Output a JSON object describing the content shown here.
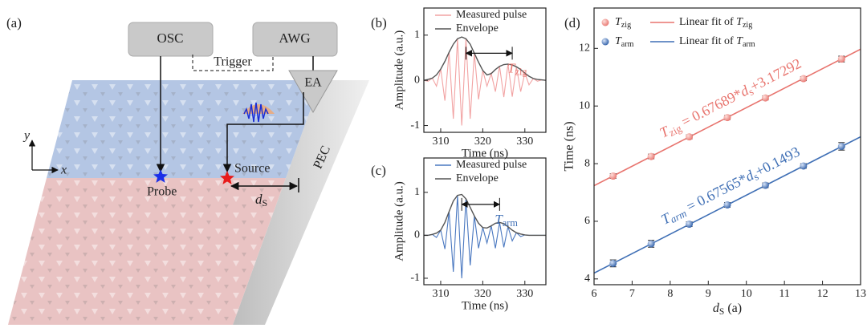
{
  "diagram": {
    "panel_label": "(a)",
    "osc": "OSC",
    "awg": "AWG",
    "trigger": "Trigger",
    "ea": "EA",
    "source": "Source",
    "probe": "Probe",
    "pec": "PEC",
    "axis_y": "y",
    "axis_x": "x",
    "distance": "d",
    "distance_sub": "S"
  },
  "chart_data": [
    {
      "type": "line",
      "panel_label": "(b)",
      "x_label": "Time (ns)",
      "y_label": "Amplitude (a.u.)",
      "x": [
        306,
        307,
        308,
        309,
        310,
        311,
        312,
        313,
        314,
        315,
        316,
        317,
        318,
        319,
        320,
        321,
        322,
        323,
        324,
        325,
        326,
        327,
        328,
        329,
        330,
        331,
        332,
        333,
        334,
        335
      ],
      "series": [
        {
          "name": "Measured pulse",
          "color": "#f2a3a3",
          "values": [
            0,
            -0.02,
            0.05,
            -0.13,
            0.25,
            -0.45,
            0.62,
            -0.85,
            0.92,
            -1.0,
            0.92,
            -0.85,
            0.6,
            -0.42,
            0.22,
            -0.13,
            0.15,
            -0.25,
            0.31,
            -0.37,
            0.36,
            -0.36,
            0.3,
            -0.25,
            0.16,
            -0.1,
            0.04,
            -0.02,
            0.01,
            0
          ]
        },
        {
          "name": "Envelope",
          "color": "#555555",
          "values": [
            0,
            0.02,
            0.05,
            0.12,
            0.25,
            0.42,
            0.62,
            0.8,
            0.92,
            0.96,
            0.92,
            0.8,
            0.6,
            0.4,
            0.22,
            0.12,
            0.15,
            0.24,
            0.31,
            0.35,
            0.36,
            0.34,
            0.3,
            0.24,
            0.16,
            0.09,
            0.04,
            0.02,
            0.01,
            0
          ]
        }
      ],
      "xlim": [
        306,
        335
      ],
      "ylim": [
        -1.15,
        1.6
      ],
      "xticks": [
        310,
        320,
        330
      ],
      "yticks": [
        -1,
        0,
        1
      ],
      "annotation": {
        "symbol": "T",
        "sub": "zig",
        "color": "#e8746e",
        "x": [
          316,
          327
        ],
        "y": 0.6
      }
    },
    {
      "type": "line",
      "panel_label": "(c)",
      "x_label": "Time (ns)",
      "y_label": "Amplitude (a.u.)",
      "x": [
        306,
        307,
        308,
        309,
        310,
        311,
        312,
        313,
        314,
        315,
        316,
        317,
        318,
        319,
        320,
        321,
        322,
        323,
        324,
        325,
        326,
        327,
        328,
        329,
        330,
        331,
        332,
        333,
        334,
        335
      ],
      "series": [
        {
          "name": "Measured pulse",
          "color": "#4a78c0",
          "values": [
            0,
            0,
            0.02,
            -0.05,
            0.12,
            -0.32,
            0.55,
            -0.85,
            0.93,
            -1.0,
            0.85,
            -0.7,
            0.45,
            -0.3,
            0.18,
            -0.18,
            0.22,
            -0.3,
            0.3,
            -0.28,
            0.2,
            -0.13,
            0.06,
            -0.03,
            0.01,
            0,
            0,
            0,
            0,
            0
          ]
        },
        {
          "name": "Envelope",
          "color": "#555555",
          "values": [
            0,
            0,
            0.02,
            0.05,
            0.12,
            0.3,
            0.55,
            0.8,
            0.93,
            0.95,
            0.85,
            0.65,
            0.45,
            0.28,
            0.18,
            0.17,
            0.22,
            0.28,
            0.3,
            0.27,
            0.2,
            0.12,
            0.06,
            0.03,
            0.01,
            0,
            0,
            0,
            0,
            0
          ]
        }
      ],
      "xlim": [
        306,
        335
      ],
      "ylim": [
        -1.15,
        1.8
      ],
      "xticks": [
        310,
        320,
        330
      ],
      "yticks": [
        -1,
        0,
        1
      ],
      "annotation": {
        "symbol": "T",
        "sub": "arm",
        "color": "#3f6fb5",
        "x": [
          315,
          324
        ],
        "y": 0.72
      }
    },
    {
      "type": "scatter",
      "panel_label": "(d)",
      "x_label": {
        "var": "d",
        "sub": "S",
        "unit": " (a)"
      },
      "y_label": "Time (ns)",
      "x": [
        6.5,
        7.5,
        8.5,
        9.5,
        10.5,
        11.5,
        12.5
      ],
      "series": [
        {
          "name": "T",
          "name_sub": "zig",
          "fit_name": "Linear fit of ",
          "color": "#e8746e",
          "values": [
            7.57,
            8.25,
            8.93,
            9.6,
            10.28,
            10.95,
            11.63
          ],
          "errors": [
            0.08,
            0.08,
            0.07,
            0.07,
            0.07,
            0.07,
            0.1
          ],
          "fit": {
            "slope": 0.67689,
            "intercept": 3.17292,
            "eq_sym": "T",
            "eq_sub": "zig",
            "eq_eq": " = ",
            "eq_times": "*",
            "eq_var": "d",
            "eq_var_sub": "s",
            "eq_plus": "+"
          }
        },
        {
          "name": "T",
          "name_sub": "arm",
          "fit_name": "Linear fit of ",
          "color": "#3f6fb5",
          "values": [
            4.54,
            5.22,
            5.9,
            6.57,
            7.25,
            7.92,
            8.6
          ],
          "errors": [
            0.12,
            0.12,
            0.08,
            0.08,
            0.08,
            0.08,
            0.13
          ],
          "fit": {
            "slope": 0.67565,
            "intercept": 0.1493,
            "eq_sym": "T",
            "eq_sub": "arm",
            "eq_eq": " = ",
            "eq_times": "*",
            "eq_var": "d",
            "eq_var_sub": "s",
            "eq_plus": "+"
          }
        }
      ],
      "xlim": [
        6,
        13
      ],
      "ylim": [
        3.8,
        13.4
      ],
      "xticks": [
        6,
        7,
        8,
        9,
        10,
        11,
        12,
        13
      ],
      "yticks": [
        4,
        6,
        8,
        10,
        12
      ]
    }
  ]
}
